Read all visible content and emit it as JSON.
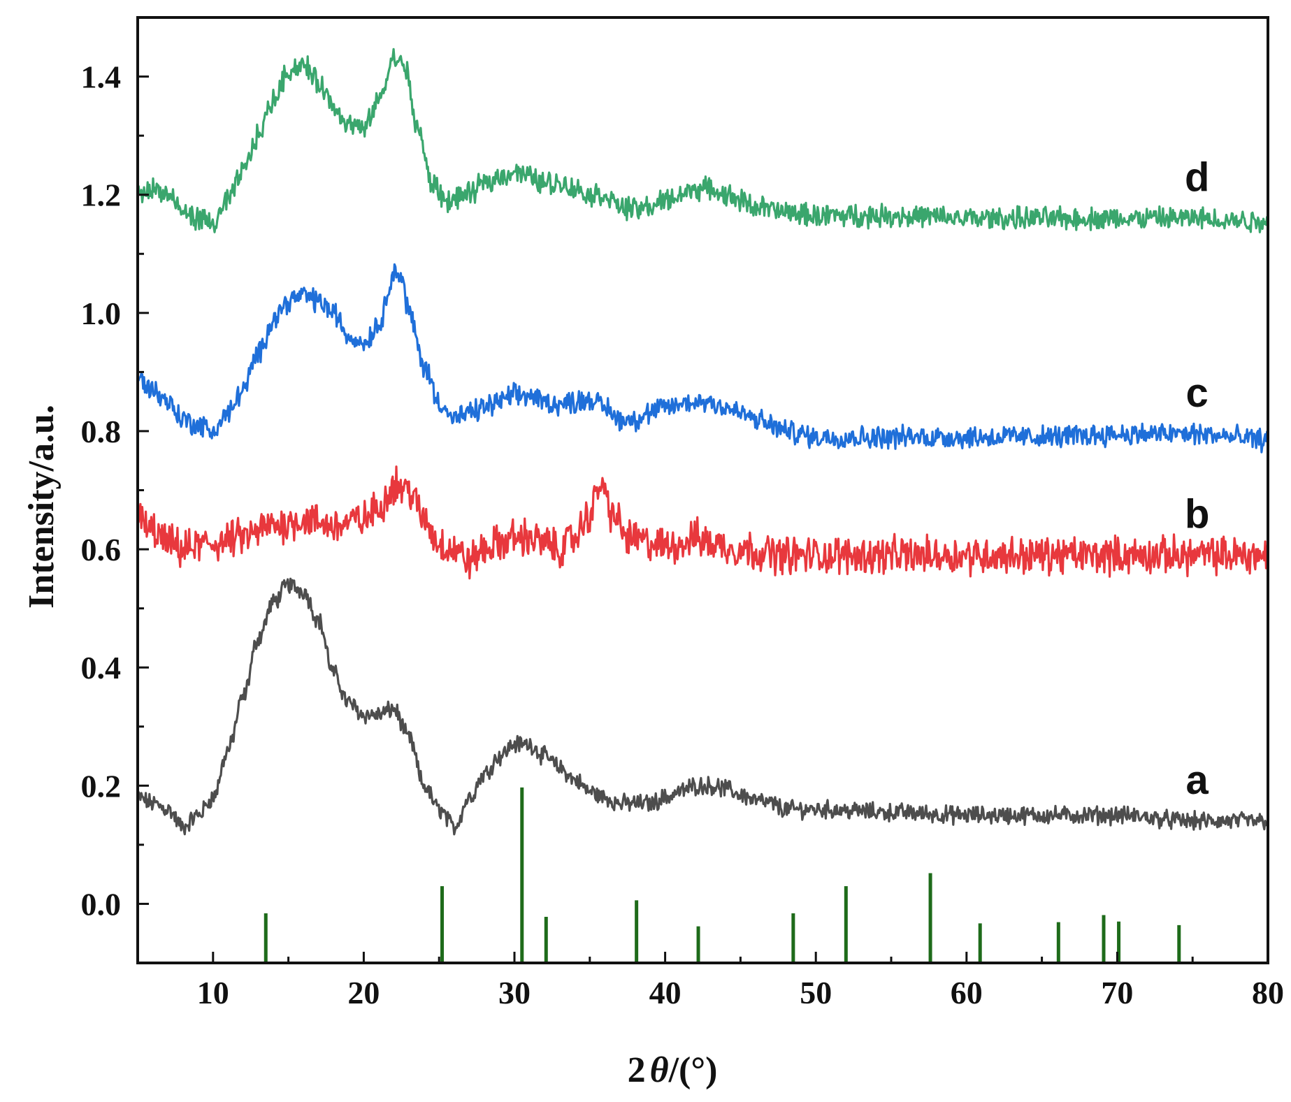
{
  "chart_data": {
    "type": "line",
    "title": "",
    "xlabel": {
      "prefix": "2",
      "symbol": "θ",
      "suffix": "/(°)"
    },
    "ylabel": "Intensity/a.u.",
    "xlim": [
      5,
      80
    ],
    "ylim": [
      -0.1,
      1.5
    ],
    "x_ticks": [
      10,
      20,
      30,
      40,
      50,
      60,
      70,
      80
    ],
    "y_ticks": [
      "0.0",
      "0.2",
      "0.4",
      "0.6",
      "0.8",
      "1.0",
      "1.2",
      "1.4"
    ],
    "grid": false,
    "legend": "none",
    "series": [
      {
        "label": "a",
        "color": "#4d4d4d",
        "noise": 0.012,
        "points": [
          [
            5,
            0.18
          ],
          [
            6,
            0.17
          ],
          [
            7,
            0.16
          ],
          [
            8,
            0.13
          ],
          [
            9,
            0.15
          ],
          [
            10,
            0.18
          ],
          [
            11,
            0.26
          ],
          [
            12,
            0.35
          ],
          [
            13,
            0.45
          ],
          [
            14,
            0.51
          ],
          [
            15,
            0.54
          ],
          [
            16,
            0.53
          ],
          [
            17,
            0.48
          ],
          [
            18,
            0.39
          ],
          [
            19,
            0.34
          ],
          [
            20,
            0.32
          ],
          [
            21,
            0.32
          ],
          [
            22,
            0.33
          ],
          [
            23,
            0.28
          ],
          [
            24,
            0.2
          ],
          [
            25,
            0.16
          ],
          [
            26,
            0.13
          ],
          [
            27,
            0.18
          ],
          [
            28,
            0.22
          ],
          [
            29,
            0.25
          ],
          [
            30,
            0.27
          ],
          [
            31,
            0.27
          ],
          [
            32,
            0.25
          ],
          [
            33,
            0.23
          ],
          [
            34,
            0.21
          ],
          [
            35,
            0.19
          ],
          [
            36,
            0.18
          ],
          [
            37,
            0.17
          ],
          [
            38,
            0.17
          ],
          [
            39,
            0.17
          ],
          [
            40,
            0.18
          ],
          [
            41,
            0.19
          ],
          [
            42,
            0.2
          ],
          [
            43,
            0.2
          ],
          [
            44,
            0.195
          ],
          [
            45,
            0.185
          ],
          [
            46,
            0.175
          ],
          [
            47,
            0.17
          ],
          [
            48,
            0.16
          ],
          [
            50,
            0.16
          ],
          [
            55,
            0.155
          ],
          [
            60,
            0.15
          ],
          [
            65,
            0.15
          ],
          [
            70,
            0.15
          ],
          [
            75,
            0.14
          ],
          [
            80,
            0.14
          ]
        ]
      },
      {
        "label": "b",
        "color": "#e8383d",
        "noise": 0.025,
        "points": [
          [
            5,
            0.65
          ],
          [
            6,
            0.63
          ],
          [
            7,
            0.61
          ],
          [
            8,
            0.6
          ],
          [
            10,
            0.61
          ],
          [
            12,
            0.62
          ],
          [
            14,
            0.64
          ],
          [
            16,
            0.65
          ],
          [
            18,
            0.64
          ],
          [
            20,
            0.65
          ],
          [
            21,
            0.67
          ],
          [
            22,
            0.71
          ],
          [
            23,
            0.7
          ],
          [
            24,
            0.65
          ],
          [
            25,
            0.61
          ],
          [
            26,
            0.6
          ],
          [
            27,
            0.58
          ],
          [
            28,
            0.6
          ],
          [
            29,
            0.61
          ],
          [
            30,
            0.62
          ],
          [
            31,
            0.62
          ],
          [
            32,
            0.61
          ],
          [
            33,
            0.6
          ],
          [
            34,
            0.62
          ],
          [
            35,
            0.66
          ],
          [
            35.7,
            0.71
          ],
          [
            36.5,
            0.66
          ],
          [
            37.5,
            0.62
          ],
          [
            39,
            0.61
          ],
          [
            40,
            0.605
          ],
          [
            41,
            0.61
          ],
          [
            42,
            0.62
          ],
          [
            43,
            0.61
          ],
          [
            45,
            0.6
          ],
          [
            48,
            0.59
          ],
          [
            50,
            0.59
          ],
          [
            55,
            0.59
          ],
          [
            60,
            0.59
          ],
          [
            65,
            0.59
          ],
          [
            70,
            0.59
          ],
          [
            75,
            0.59
          ],
          [
            80,
            0.59
          ]
        ]
      },
      {
        "label": "c",
        "color": "#1f6fd9",
        "noise": 0.015,
        "points": [
          [
            5,
            0.89
          ],
          [
            6,
            0.87
          ],
          [
            7,
            0.85
          ],
          [
            8,
            0.82
          ],
          [
            9,
            0.81
          ],
          [
            10,
            0.8
          ],
          [
            11,
            0.83
          ],
          [
            12,
            0.87
          ],
          [
            13,
            0.93
          ],
          [
            14,
            0.99
          ],
          [
            15,
            1.02
          ],
          [
            16,
            1.03
          ],
          [
            17,
            1.02
          ],
          [
            18,
            1.0
          ],
          [
            19,
            0.96
          ],
          [
            20,
            0.95
          ],
          [
            21,
            0.98
          ],
          [
            22,
            1.07
          ],
          [
            22.5,
            1.06
          ],
          [
            23,
            1.0
          ],
          [
            24,
            0.91
          ],
          [
            25,
            0.85
          ],
          [
            26,
            0.82
          ],
          [
            27,
            0.83
          ],
          [
            28,
            0.84
          ],
          [
            29,
            0.85
          ],
          [
            30,
            0.86
          ],
          [
            31,
            0.86
          ],
          [
            32,
            0.85
          ],
          [
            33,
            0.845
          ],
          [
            34,
            0.85
          ],
          [
            35,
            0.855
          ],
          [
            36,
            0.84
          ],
          [
            37,
            0.82
          ],
          [
            38,
            0.82
          ],
          [
            39,
            0.83
          ],
          [
            40,
            0.84
          ],
          [
            41,
            0.845
          ],
          [
            42,
            0.85
          ],
          [
            43,
            0.85
          ],
          [
            44,
            0.84
          ],
          [
            45,
            0.83
          ],
          [
            46,
            0.82
          ],
          [
            47,
            0.81
          ],
          [
            48,
            0.8
          ],
          [
            50,
            0.79
          ],
          [
            55,
            0.79
          ],
          [
            60,
            0.79
          ],
          [
            65,
            0.79
          ],
          [
            70,
            0.795
          ],
          [
            75,
            0.795
          ],
          [
            80,
            0.785
          ]
        ]
      },
      {
        "label": "d",
        "color": "#3aa66d",
        "noise": 0.015,
        "points": [
          [
            5,
            1.2
          ],
          [
            6,
            1.21
          ],
          [
            7,
            1.2
          ],
          [
            8,
            1.17
          ],
          [
            9,
            1.16
          ],
          [
            10,
            1.15
          ],
          [
            11,
            1.19
          ],
          [
            12,
            1.24
          ],
          [
            13,
            1.3
          ],
          [
            14,
            1.36
          ],
          [
            15,
            1.41
          ],
          [
            16,
            1.42
          ],
          [
            17,
            1.39
          ],
          [
            18,
            1.35
          ],
          [
            19,
            1.32
          ],
          [
            20,
            1.31
          ],
          [
            21,
            1.36
          ],
          [
            22,
            1.43
          ],
          [
            22.7,
            1.42
          ],
          [
            23.5,
            1.32
          ],
          [
            24.5,
            1.22
          ],
          [
            25.5,
            1.19
          ],
          [
            27,
            1.2
          ],
          [
            28,
            1.22
          ],
          [
            29,
            1.23
          ],
          [
            30,
            1.24
          ],
          [
            31,
            1.23
          ],
          [
            32,
            1.22
          ],
          [
            33,
            1.22
          ],
          [
            34,
            1.21
          ],
          [
            35,
            1.2
          ],
          [
            36,
            1.2
          ],
          [
            37,
            1.18
          ],
          [
            38,
            1.175
          ],
          [
            39,
            1.18
          ],
          [
            40,
            1.19
          ],
          [
            41,
            1.2
          ],
          [
            42,
            1.21
          ],
          [
            43,
            1.21
          ],
          [
            44,
            1.2
          ],
          [
            45,
            1.19
          ],
          [
            46,
            1.18
          ],
          [
            48,
            1.17
          ],
          [
            50,
            1.165
          ],
          [
            55,
            1.165
          ],
          [
            60,
            1.16
          ],
          [
            65,
            1.16
          ],
          [
            70,
            1.16
          ],
          [
            75,
            1.16
          ],
          [
            80,
            1.155
          ]
        ]
      }
    ],
    "reference_peaks": {
      "color": "#1e6b1a",
      "peaks": [
        [
          13.5,
          -0.016
        ],
        [
          25.2,
          0.03
        ],
        [
          30.5,
          0.197
        ],
        [
          32.1,
          -0.022
        ],
        [
          38.1,
          0.006
        ],
        [
          42.2,
          -0.038
        ],
        [
          48.5,
          -0.016
        ],
        [
          52.0,
          0.03
        ],
        [
          57.6,
          0.052
        ],
        [
          60.9,
          -0.033
        ],
        [
          66.1,
          -0.031
        ],
        [
          69.1,
          -0.019
        ],
        [
          70.1,
          -0.03
        ],
        [
          74.1,
          -0.036
        ]
      ]
    }
  }
}
